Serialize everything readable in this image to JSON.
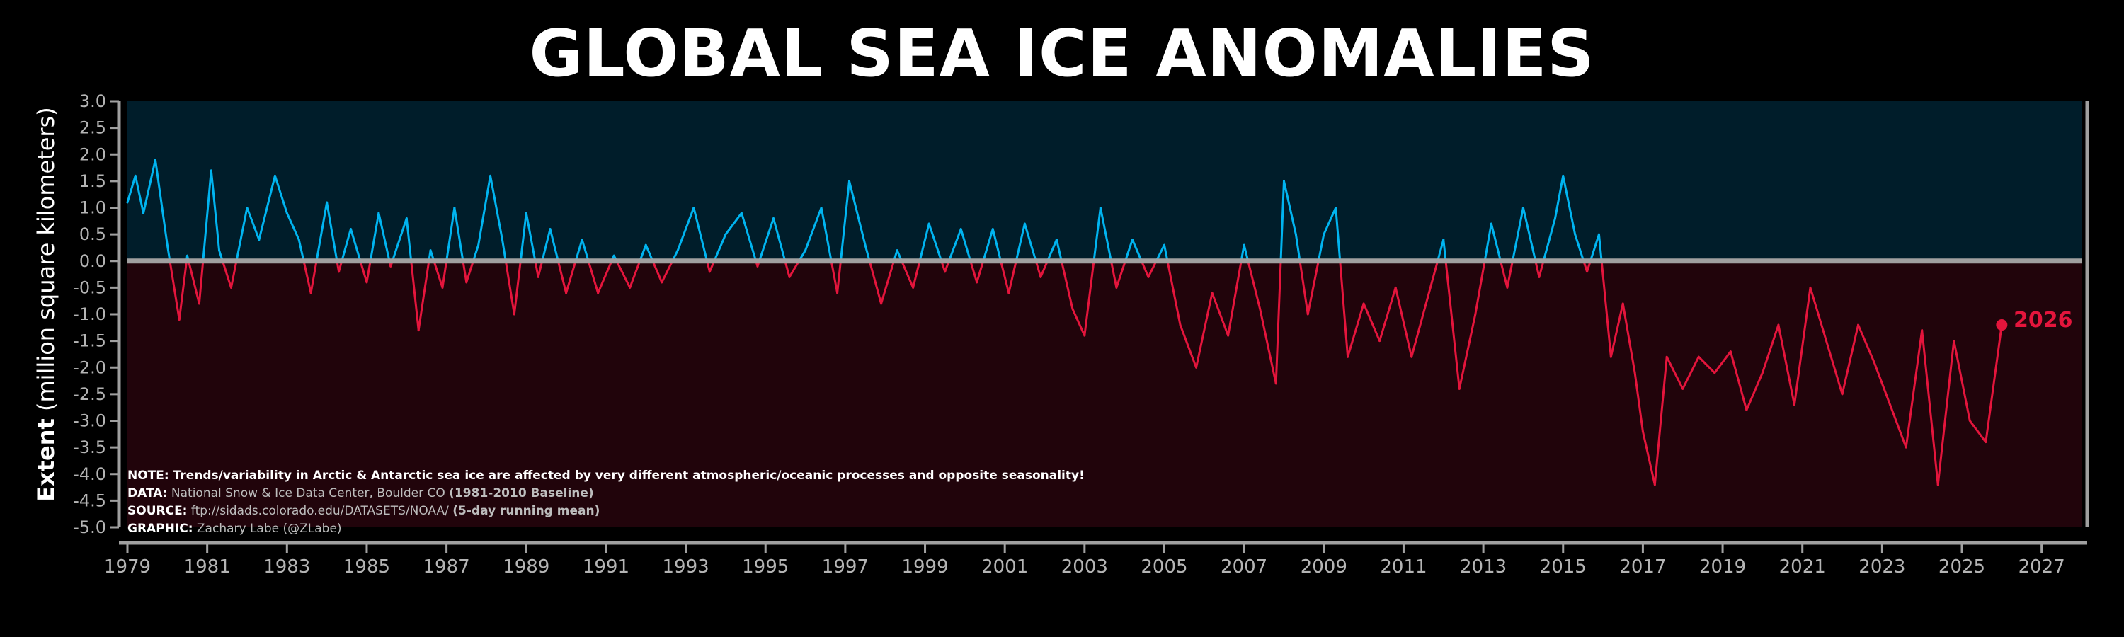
{
  "title": "GLOBAL SEA ICE ANOMALIES",
  "ylabel_bold": "Extent",
  "ylabel_rest": " (million square kilometers)",
  "notes": {
    "note": "NOTE: Trends/variability in Arctic & Antarctic sea ice are affected by very different atmospheric/oceanic processes and opposite seasonality!",
    "data_key": "DATA:",
    "data_val": " National Snow & Ice Data Center, Boulder CO ",
    "data_bold": "(1981-2010 Baseline)",
    "source_key": "SOURCE:",
    "source_val": " ftp://sidads.colorado.edu/DATASETS/NOAA/ ",
    "source_bold": "(5-day running mean)",
    "graphic_key": "GRAPHIC:",
    "graphic_val": " Zachary Labe (@ZLabe)"
  },
  "end_label": "2026",
  "colors": {
    "positive": "#00b4f0",
    "negative": "#e4153c",
    "bg_positive": "#001d2a",
    "bg_negative": "#21040b",
    "zero_line": "#a0a0a0",
    "axis": "#a0a0a0"
  },
  "chart_data": {
    "type": "line",
    "title": "GLOBAL SEA ICE ANOMALIES",
    "xlabel": "",
    "ylabel": "Extent (million square kilometers)",
    "xlim": [
      1979,
      2028
    ],
    "ylim": [
      -5.0,
      3.0
    ],
    "grid": false,
    "yticks": [
      "3.0",
      "2.5",
      "2.0",
      "1.5",
      "1.0",
      "0.5",
      "0.0",
      "-0.5",
      "-1.0",
      "-1.5",
      "-2.0",
      "-2.5",
      "-3.0",
      "-3.5",
      "-4.0",
      "-4.5",
      "-5.0"
    ],
    "xticks": [
      "1979",
      "1981",
      "1983",
      "1985",
      "1987",
      "1989",
      "1991",
      "1993",
      "1995",
      "1997",
      "1999",
      "2001",
      "2003",
      "2005",
      "2007",
      "2009",
      "2011",
      "2013",
      "2015",
      "2017",
      "2019",
      "2021",
      "2023",
      "2025",
      "2027"
    ],
    "series": [
      {
        "x": [
          1979.0,
          1979.2,
          1979.4,
          1979.7,
          1980.0,
          1980.3,
          1980.5,
          1980.8,
          1981.1,
          1981.3,
          1981.6,
          1982.0,
          1982.3,
          1982.7,
          1983.0,
          1983.3,
          1983.6,
          1984.0,
          1984.3,
          1984.6,
          1985.0,
          1985.3,
          1985.6,
          1986.0,
          1986.3,
          1986.6,
          1986.9,
          1987.2,
          1987.5,
          1987.8,
          1988.1,
          1988.4,
          1988.7,
          1989.0,
          1989.3,
          1989.6,
          1990.0,
          1990.4,
          1990.8,
          1991.2,
          1991.6,
          1992.0,
          1992.4,
          1992.8,
          1993.2,
          1993.6,
          1994.0,
          1994.4,
          1994.8,
          1995.2,
          1995.6,
          1996.0,
          1996.4,
          1996.8,
          1997.1,
          1997.5,
          1997.9,
          1998.3,
          1998.7,
          1999.1,
          1999.5,
          1999.9,
          2000.3,
          2000.7,
          2001.1,
          2001.5,
          2001.9,
          2002.3,
          2002.7,
          2003.0,
          2003.4,
          2003.8,
          2004.2,
          2004.6,
          2005.0,
          2005.4,
          2005.8,
          2006.2,
          2006.6,
          2007.0,
          2007.4,
          2007.8,
          2008.0,
          2008.3,
          2008.6,
          2009.0,
          2009.3,
          2009.6,
          2010.0,
          2010.4,
          2010.8,
          2011.2,
          2011.6,
          2012.0,
          2012.4,
          2012.8,
          2013.2,
          2013.6,
          2014.0,
          2014.4,
          2014.8,
          2015.0,
          2015.3,
          2015.6,
          2015.9,
          2016.2,
          2016.5,
          2016.8,
          2017.0,
          2017.3,
          2017.6,
          2018.0,
          2018.4,
          2018.8,
          2019.2,
          2019.6,
          2020.0,
          2020.4,
          2020.8,
          2021.2,
          2021.6,
          2022.0,
          2022.4,
          2022.8,
          2023.2,
          2023.6,
          2024.0,
          2024.4,
          2024.8,
          2025.2,
          2025.6,
          2026.0
        ],
        "y": [
          1.1,
          1.6,
          0.9,
          1.9,
          0.3,
          -1.1,
          0.1,
          -0.8,
          1.7,
          0.2,
          -0.5,
          1.0,
          0.4,
          1.6,
          0.9,
          0.4,
          -0.6,
          1.1,
          -0.2,
          0.6,
          -0.4,
          0.9,
          -0.1,
          0.8,
          -1.3,
          0.2,
          -0.5,
          1.0,
          -0.4,
          0.3,
          1.6,
          0.4,
          -1.0,
          0.9,
          -0.3,
          0.6,
          -0.6,
          0.4,
          -0.6,
          0.1,
          -0.5,
          0.3,
          -0.4,
          0.2,
          1.0,
          -0.2,
          0.5,
          0.9,
          -0.1,
          0.8,
          -0.3,
          0.2,
          1.0,
          -0.6,
          1.5,
          0.3,
          -0.8,
          0.2,
          -0.5,
          0.7,
          -0.2,
          0.6,
          -0.4,
          0.6,
          -0.6,
          0.7,
          -0.3,
          0.4,
          -0.9,
          -1.4,
          1.0,
          -0.5,
          0.4,
          -0.3,
          0.3,
          -1.2,
          -2.0,
          -0.6,
          -1.4,
          0.3,
          -0.9,
          -2.3,
          1.5,
          0.5,
          -1.0,
          0.5,
          1.0,
          -1.8,
          -0.8,
          -1.5,
          -0.5,
          -1.8,
          -0.7,
          0.4,
          -2.4,
          -1.0,
          0.7,
          -0.5,
          1.0,
          -0.3,
          0.8,
          1.6,
          0.5,
          -0.2,
          0.5,
          -1.8,
          -0.8,
          -2.1,
          -3.2,
          -4.2,
          -1.8,
          -2.4,
          -1.8,
          -2.1,
          -1.7,
          -2.8,
          -2.1,
          -1.2,
          -2.7,
          -0.5,
          -1.5,
          -2.5,
          -1.2,
          -1.9,
          -2.7,
          -3.5,
          -1.3,
          -4.2,
          -1.5,
          -3.0,
          -3.4,
          -1.2
        ]
      }
    ]
  }
}
